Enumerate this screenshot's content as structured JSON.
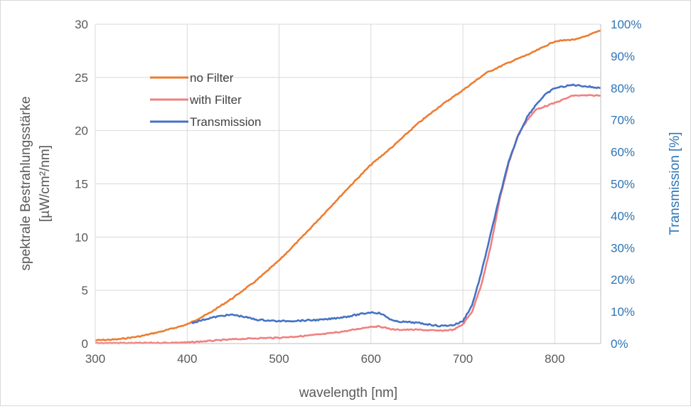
{
  "chart_data": {
    "type": "line",
    "grid": true,
    "legend_position": "top-left",
    "xlabel": "wavelength [nm]",
    "ylabel_lines": [
      "spektrale Bestrahlungsstärke",
      "[µW/cm²/nm]"
    ],
    "y2label": "Transmission [%]",
    "xlim": [
      300,
      850
    ],
    "ylim": [
      0,
      30
    ],
    "y2lim": [
      0,
      1
    ],
    "x_ticks": [
      "300",
      "400",
      "500",
      "600",
      "700",
      "800"
    ],
    "y_ticks": [
      "0",
      "5",
      "10",
      "15",
      "20",
      "25",
      "30"
    ],
    "y2_ticks": [
      "0%",
      "10%",
      "20%",
      "30%",
      "40%",
      "50%",
      "60%",
      "70%",
      "80%",
      "90%",
      "100%"
    ],
    "colors": {
      "no_filter": "#ed7d31",
      "with_filter": "#f08080",
      "transmission": "#4472c4",
      "right_axis": "#2e75b6"
    },
    "series": [
      {
        "name": "no Filter",
        "axis": "left",
        "x": [
          300,
          325,
          350,
          375,
          400,
          425,
          450,
          475,
          500,
          525,
          550,
          575,
          600,
          625,
          650,
          675,
          700,
          725,
          750,
          775,
          800,
          825,
          850
        ],
        "y": [
          0.3,
          0.4,
          0.7,
          1.2,
          1.8,
          2.9,
          4.3,
          5.9,
          7.8,
          10.0,
          12.3,
          14.6,
          16.8,
          18.6,
          20.6,
          22.3,
          23.8,
          25.4,
          26.4,
          27.3,
          28.4,
          28.6,
          29.4
        ]
      },
      {
        "name": "with Filter",
        "axis": "left",
        "x": [
          300,
          350,
          400,
          425,
          450,
          475,
          500,
          525,
          550,
          575,
          600,
          610,
          625,
          650,
          675,
          690,
          700,
          710,
          720,
          730,
          740,
          750,
          760,
          770,
          780,
          800,
          820,
          850
        ],
        "y": [
          0.05,
          0.05,
          0.1,
          0.25,
          0.4,
          0.5,
          0.55,
          0.7,
          0.9,
          1.2,
          1.6,
          1.6,
          1.3,
          1.3,
          1.2,
          1.3,
          1.8,
          3.0,
          5.5,
          9.0,
          13.5,
          17.0,
          19.6,
          21.0,
          22.0,
          22.6,
          23.3,
          23.3
        ]
      },
      {
        "name": "Transmission",
        "axis": "right",
        "x": [
          405,
          425,
          440,
          450,
          460,
          475,
          500,
          525,
          550,
          575,
          600,
          610,
          625,
          650,
          675,
          690,
          700,
          710,
          720,
          730,
          740,
          750,
          760,
          770,
          780,
          790,
          800,
          820,
          850
        ],
        "y": [
          0.065,
          0.08,
          0.088,
          0.09,
          0.085,
          0.075,
          0.07,
          0.072,
          0.075,
          0.085,
          0.098,
          0.095,
          0.07,
          0.065,
          0.055,
          0.058,
          0.07,
          0.12,
          0.22,
          0.34,
          0.46,
          0.57,
          0.65,
          0.71,
          0.75,
          0.78,
          0.8,
          0.81,
          0.8
        ]
      }
    ]
  }
}
